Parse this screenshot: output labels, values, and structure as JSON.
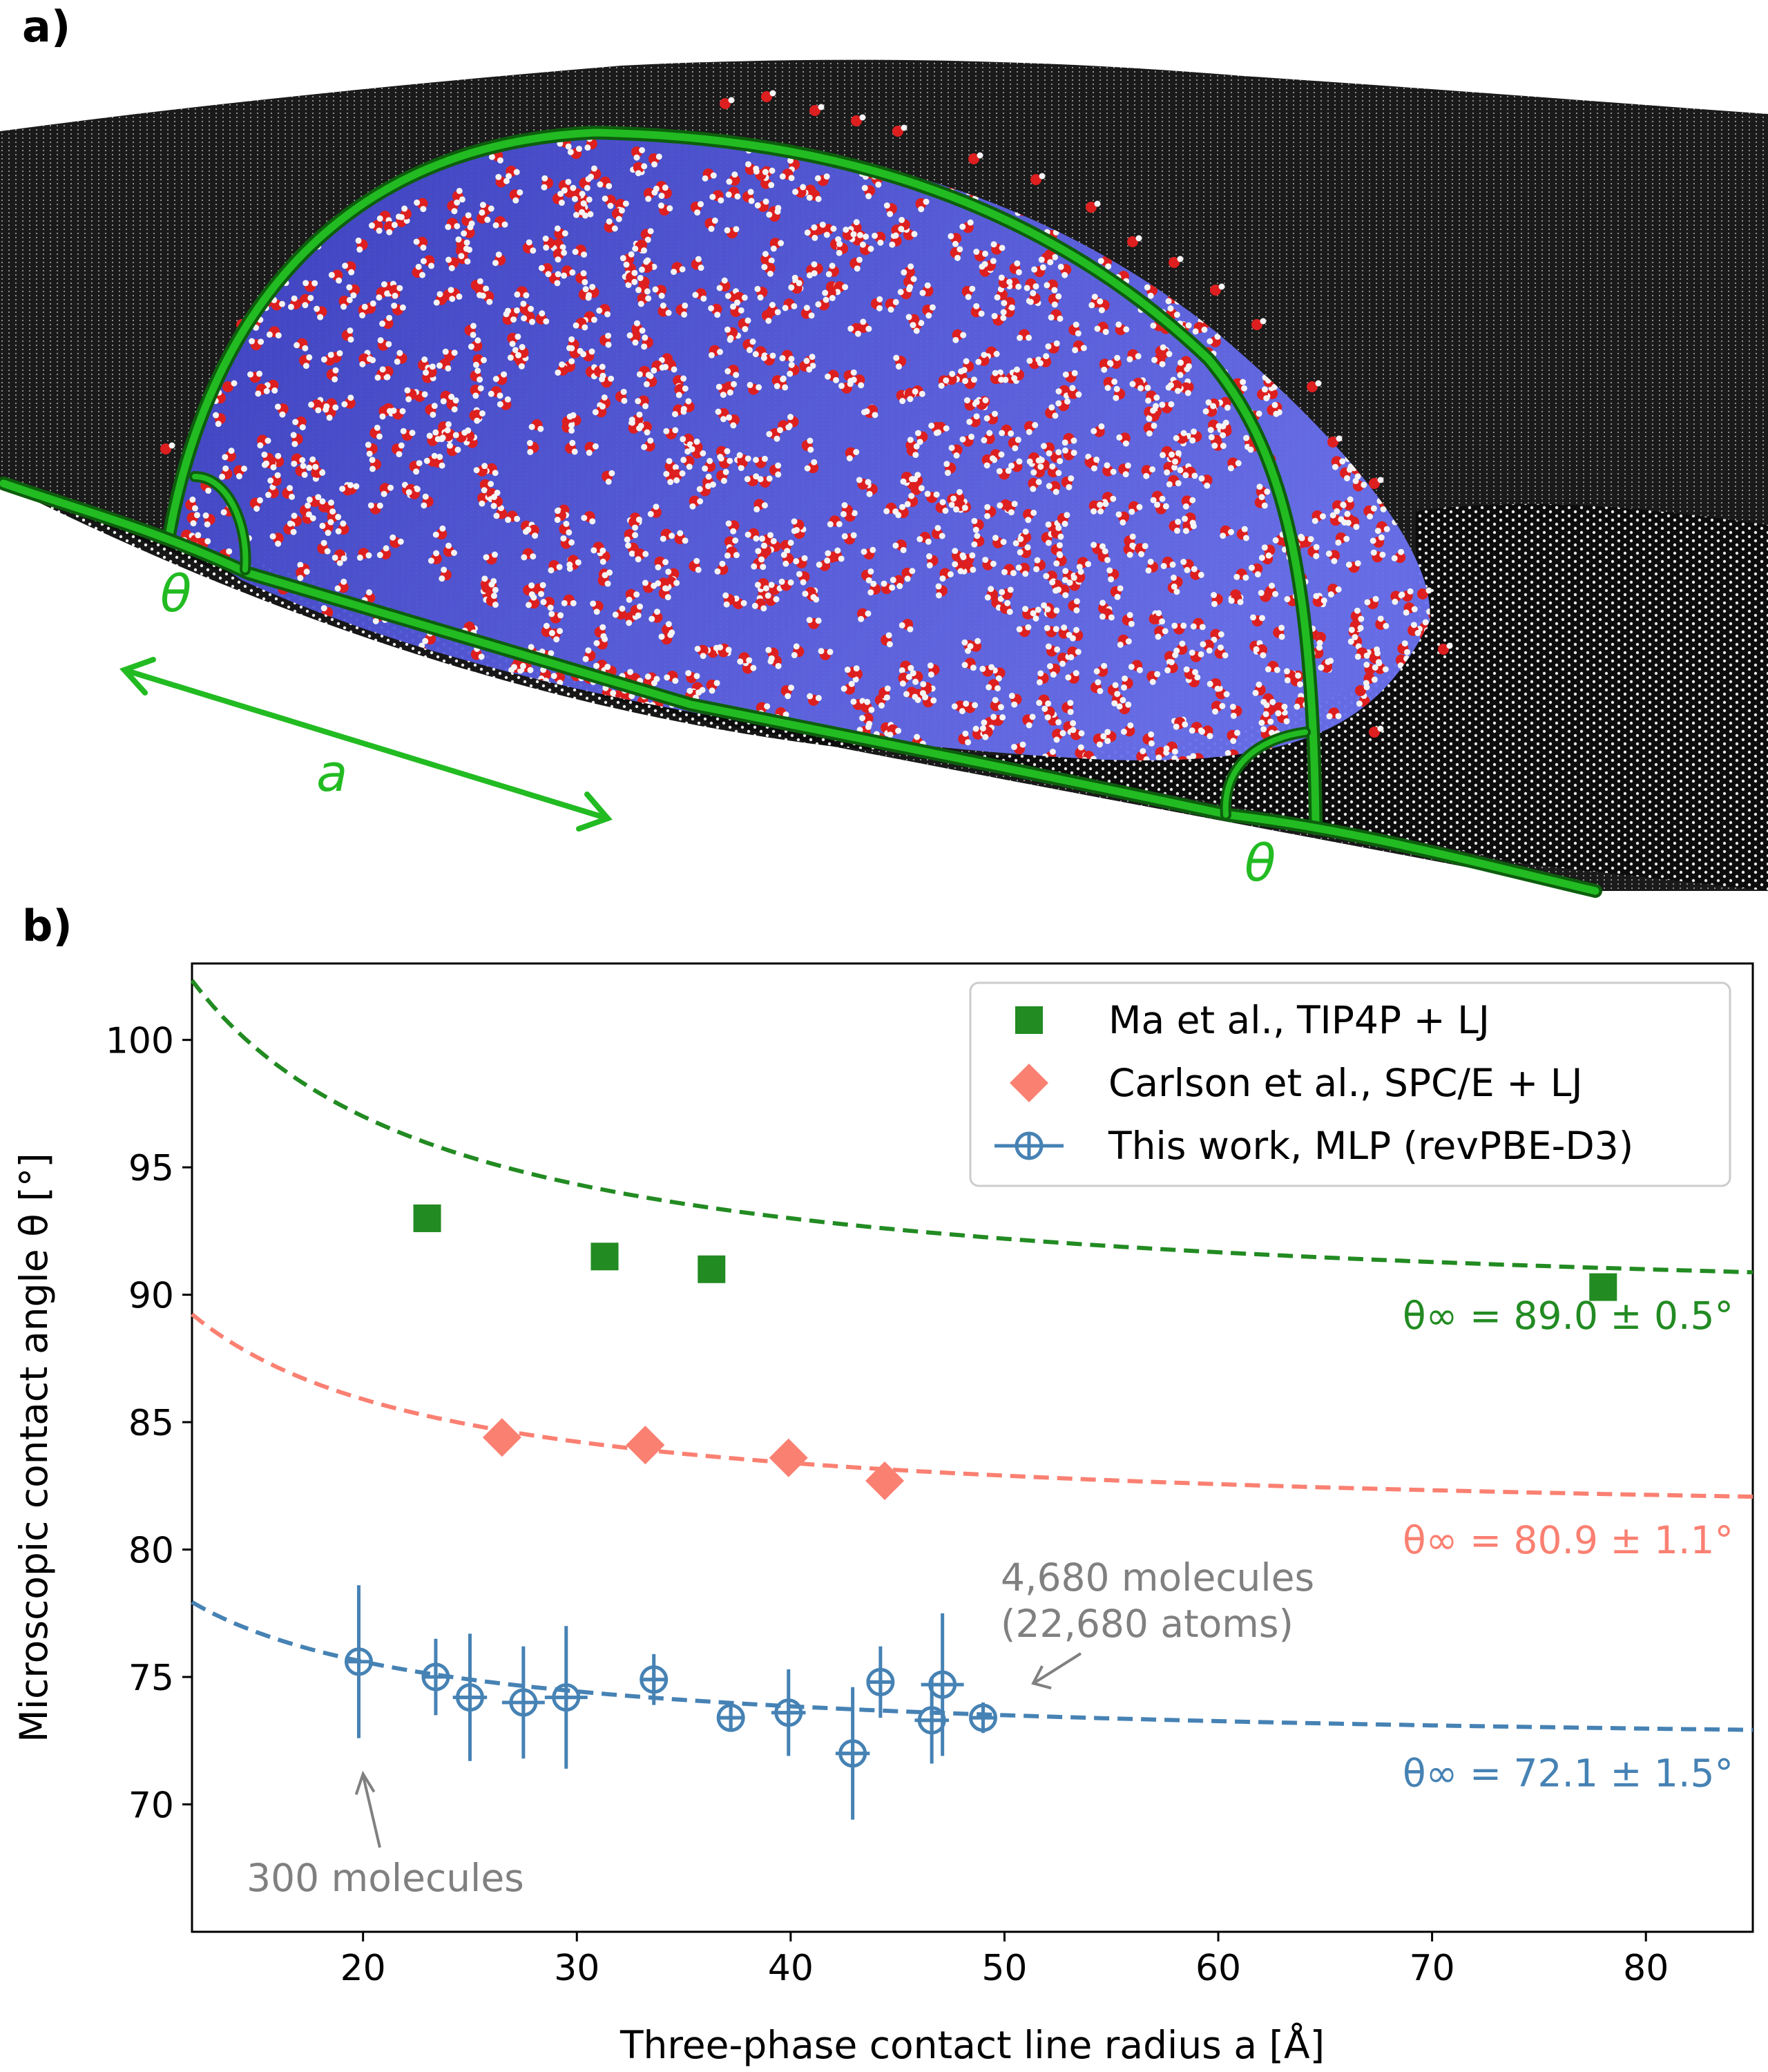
{
  "panel_a": {
    "label": "a)",
    "theta_left": "θ",
    "theta_right": "θ",
    "radius_label": "a",
    "colors": {
      "outline": "#1f9a1f",
      "droplet": "#5055d8",
      "oxygen": "#dd1f1f",
      "hydrogen": "#f4f4f4",
      "graphene": "#101010"
    }
  },
  "panel_b": {
    "label": "b)"
  },
  "chart_data": {
    "type": "scatter",
    "xlabel": "Three-phase contact line radius a [Å]",
    "ylabel": "Microscopic contact angle θ [°]",
    "xlim": [
      12,
      85
    ],
    "ylim": [
      65,
      103
    ],
    "xticks": [
      20,
      30,
      40,
      50,
      60,
      70,
      80
    ],
    "yticks": [
      70,
      75,
      80,
      85,
      90,
      95,
      100
    ],
    "legend_position": "top-right",
    "series": [
      {
        "name": "Ma et al., TIP4P + LJ",
        "color": "#228b22",
        "marker": "square",
        "x": [
          23.0,
          31.3,
          36.3,
          78.0
        ],
        "y": [
          93.0,
          91.5,
          91.0,
          90.3
        ],
        "fit": {
          "theta_inf": 89.0,
          "k": 160,
          "label": "θ∞ = 89.0 ± 0.5°"
        }
      },
      {
        "name": "Carlson et al., SPC/E + LJ",
        "color": "#fa8072",
        "marker": "diamond",
        "x": [
          26.5,
          33.2,
          39.9,
          44.4
        ],
        "y": [
          84.4,
          84.1,
          83.6,
          82.7
        ],
        "fit": {
          "theta_inf": 80.9,
          "k": 100,
          "label": "θ∞ = 80.9 ± 1.1°"
        }
      },
      {
        "name": "This work, MLP (revPBE-D3)",
        "color": "#4682b4",
        "marker": "circle-cross",
        "x": [
          19.8,
          23.4,
          25.0,
          27.5,
          29.5,
          33.6,
          37.2,
          39.9,
          42.9,
          44.2,
          46.6,
          47.1,
          49.0
        ],
        "y": [
          75.6,
          75.0,
          74.2,
          74.0,
          74.2,
          74.9,
          73.4,
          73.6,
          72.0,
          74.8,
          73.3,
          74.7,
          73.4
        ],
        "yerr": [
          3.0,
          1.5,
          2.5,
          2.2,
          2.8,
          1.0,
          0.5,
          1.7,
          2.6,
          1.4,
          1.7,
          2.8,
          0.6
        ],
        "xerr": [
          0.0,
          0.6,
          0.8,
          1.0,
          1.0,
          0.6,
          0.5,
          0.8,
          0.8,
          0.6,
          0.8,
          1.0,
          0.6
        ],
        "fit": {
          "theta_inf": 72.1,
          "k": 70,
          "label": "θ∞ = 72.1 ± 1.5°"
        }
      }
    ],
    "annotations": [
      {
        "text": "300 molecules",
        "x": 20.0,
        "y": 71.9
      },
      {
        "text": "4,680 molecules",
        "x": 50.7,
        "y": 74.4
      },
      {
        "text": "(22,680 atoms)",
        "x": 50.7,
        "y": 74.4
      }
    ]
  }
}
